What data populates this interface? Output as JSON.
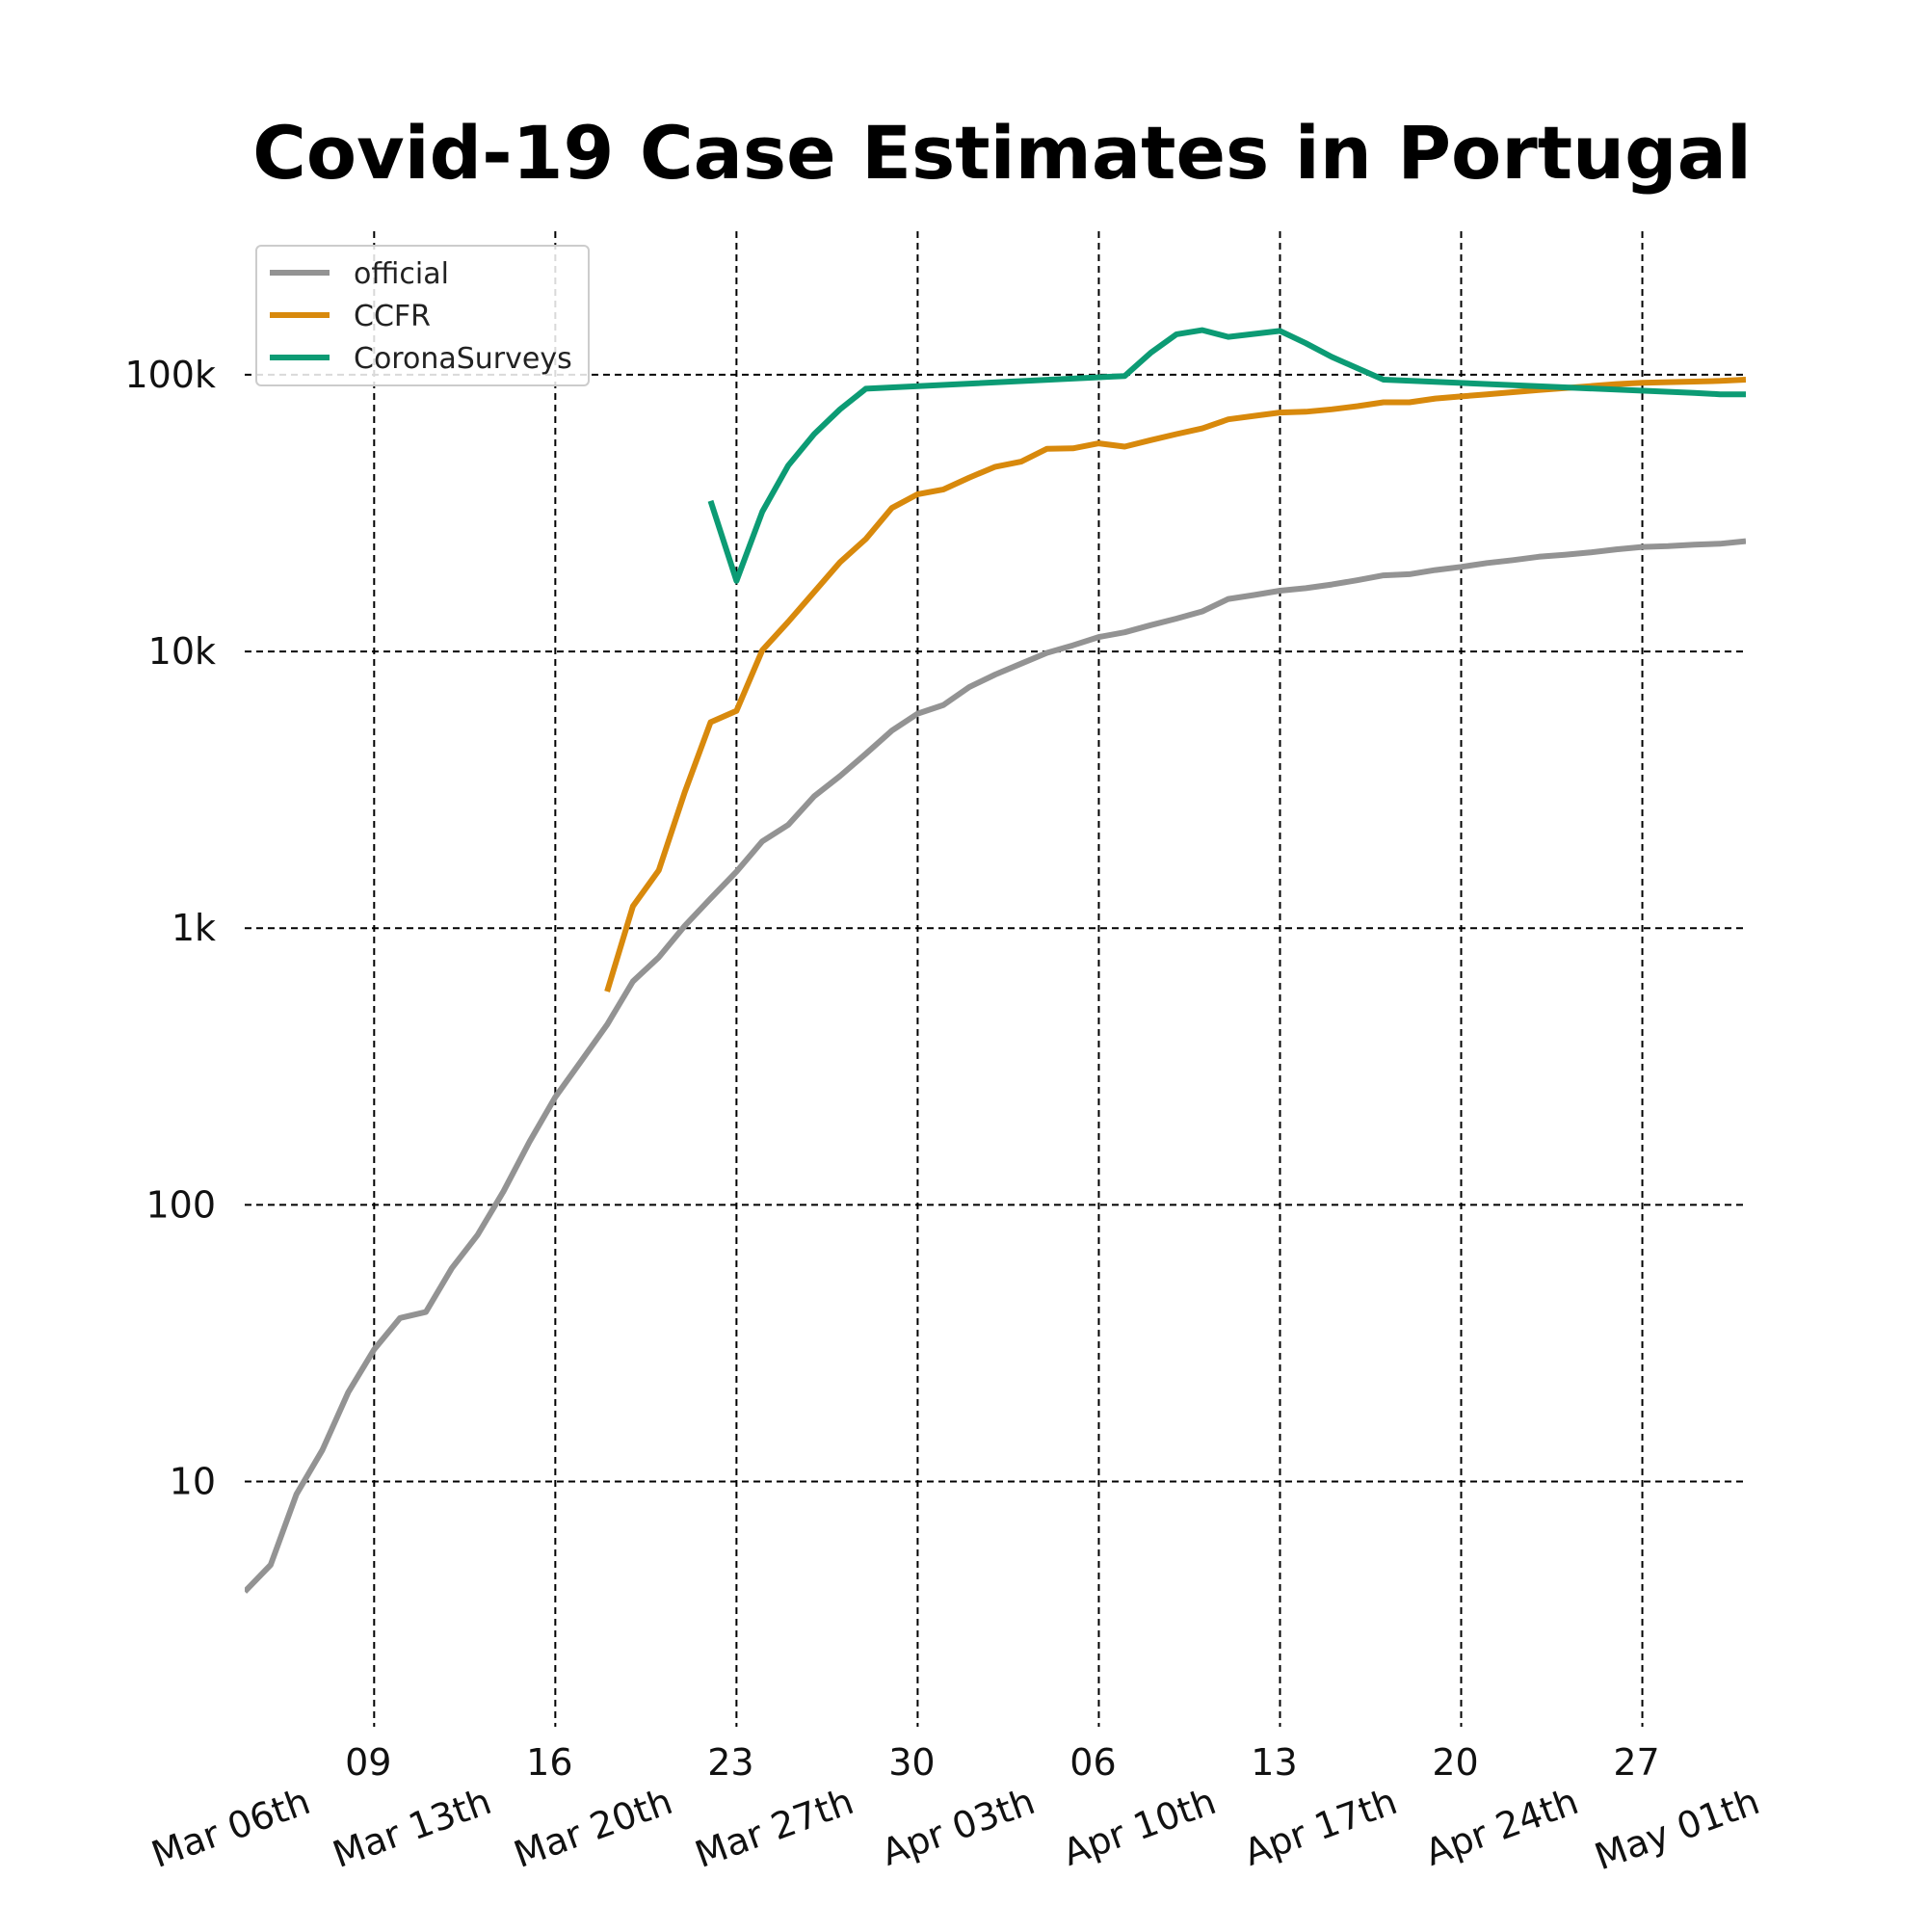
{
  "chart_data": {
    "type": "line",
    "title": "Covid-19 Case Estimates in Portugal",
    "xlabel": "",
    "ylabel": "",
    "yscale": "log",
    "ylim": [
      1.3,
      330000
    ],
    "xlim": [
      "2020-03-04",
      "2020-05-01"
    ],
    "grid": true,
    "legend_position": "top-left",
    "y_ticks": [
      {
        "value": 10,
        "label": "10"
      },
      {
        "value": 100,
        "label": "100"
      },
      {
        "value": 1000,
        "label": "1k"
      },
      {
        "value": 10000,
        "label": "10k"
      },
      {
        "value": 100000,
        "label": "100k"
      }
    ],
    "x_major_ticks": [
      {
        "date": "2020-03-06",
        "label": "Mar 06th"
      },
      {
        "date": "2020-03-13",
        "label": "Mar 13th"
      },
      {
        "date": "2020-03-20",
        "label": "Mar 20th"
      },
      {
        "date": "2020-03-27",
        "label": "Mar 27th"
      },
      {
        "date": "2020-04-03",
        "label": "Apr 03th"
      },
      {
        "date": "2020-04-10",
        "label": "Apr 10th"
      },
      {
        "date": "2020-04-17",
        "label": "Apr 17th"
      },
      {
        "date": "2020-04-24",
        "label": "Apr 24th"
      },
      {
        "date": "2020-05-01",
        "label": "May 01th"
      }
    ],
    "x_minor_ticks": [
      {
        "date": "2020-03-09",
        "label": "09"
      },
      {
        "date": "2020-03-16",
        "label": "16"
      },
      {
        "date": "2020-03-23",
        "label": "23"
      },
      {
        "date": "2020-03-30",
        "label": "30"
      },
      {
        "date": "2020-04-06",
        "label": "06"
      },
      {
        "date": "2020-04-13",
        "label": "13"
      },
      {
        "date": "2020-04-20",
        "label": "20"
      },
      {
        "date": "2020-04-27",
        "label": "27"
      }
    ],
    "series": [
      {
        "name": "official",
        "color": "#939393",
        "points": [
          [
            "2020-03-04",
            4
          ],
          [
            "2020-03-05",
            5
          ],
          [
            "2020-03-06",
            9
          ],
          [
            "2020-03-07",
            13
          ],
          [
            "2020-03-08",
            21
          ],
          [
            "2020-03-09",
            30
          ],
          [
            "2020-03-10",
            39
          ],
          [
            "2020-03-11",
            41
          ],
          [
            "2020-03-12",
            59
          ],
          [
            "2020-03-13",
            78
          ],
          [
            "2020-03-14",
            112
          ],
          [
            "2020-03-15",
            169
          ],
          [
            "2020-03-16",
            245
          ],
          [
            "2020-03-17",
            331
          ],
          [
            "2020-03-18",
            448
          ],
          [
            "2020-03-19",
            642
          ],
          [
            "2020-03-20",
            785
          ],
          [
            "2020-03-21",
            1020
          ],
          [
            "2020-03-22",
            1280
          ],
          [
            "2020-03-23",
            1600
          ],
          [
            "2020-03-24",
            2060
          ],
          [
            "2020-03-25",
            2362
          ],
          [
            "2020-03-26",
            2995
          ],
          [
            "2020-03-27",
            3544
          ],
          [
            "2020-03-28",
            4268
          ],
          [
            "2020-03-29",
            5170
          ],
          [
            "2020-03-30",
            5962
          ],
          [
            "2020-03-31",
            6408
          ],
          [
            "2020-04-01",
            7443
          ],
          [
            "2020-04-02",
            8251
          ],
          [
            "2020-04-03",
            9034
          ],
          [
            "2020-04-04",
            9886
          ],
          [
            "2020-04-05",
            10524
          ],
          [
            "2020-04-06",
            11278
          ],
          [
            "2020-04-07",
            11730
          ],
          [
            "2020-04-08",
            12442
          ],
          [
            "2020-04-09",
            13141
          ],
          [
            "2020-04-10",
            13956
          ],
          [
            "2020-04-11",
            15472
          ],
          [
            "2020-04-12",
            15987
          ],
          [
            "2020-04-13",
            16585
          ],
          [
            "2020-04-14",
            16934
          ],
          [
            "2020-04-15",
            17448
          ],
          [
            "2020-04-16",
            18091
          ],
          [
            "2020-04-17",
            18841
          ],
          [
            "2020-04-18",
            19022
          ],
          [
            "2020-04-19",
            19685
          ],
          [
            "2020-04-20",
            20206
          ],
          [
            "2020-04-21",
            20863
          ],
          [
            "2020-04-22",
            21379
          ],
          [
            "2020-04-23",
            21982
          ],
          [
            "2020-04-24",
            22353
          ],
          [
            "2020-04-25",
            22797
          ],
          [
            "2020-04-26",
            23392
          ],
          [
            "2020-04-27",
            23864
          ],
          [
            "2020-04-28",
            24027
          ],
          [
            "2020-04-29",
            24322
          ],
          [
            "2020-04-30",
            24505
          ],
          [
            "2020-05-01",
            25045
          ]
        ]
      },
      {
        "name": "CCFR",
        "color": "#d8890c",
        "points": [
          [
            "2020-03-18",
            590
          ],
          [
            "2020-03-19",
            1200
          ],
          [
            "2020-03-20",
            1620
          ],
          [
            "2020-03-21",
            3100
          ],
          [
            "2020-03-22",
            5550
          ],
          [
            "2020-03-23",
            6100
          ],
          [
            "2020-03-24",
            10100
          ],
          [
            "2020-03-25",
            12800
          ],
          [
            "2020-03-26",
            16400
          ],
          [
            "2020-03-27",
            21000
          ],
          [
            "2020-03-28",
            25500
          ],
          [
            "2020-03-29",
            33000
          ],
          [
            "2020-03-30",
            37000
          ],
          [
            "2020-03-31",
            38500
          ],
          [
            "2020-04-01",
            42500
          ],
          [
            "2020-04-02",
            46500
          ],
          [
            "2020-04-03",
            48500
          ],
          [
            "2020-04-04",
            54000
          ],
          [
            "2020-04-05",
            54200
          ],
          [
            "2020-04-06",
            56500
          ],
          [
            "2020-04-07",
            55000
          ],
          [
            "2020-04-08",
            58000
          ],
          [
            "2020-04-09",
            61000
          ],
          [
            "2020-04-10",
            64000
          ],
          [
            "2020-04-11",
            69000
          ],
          [
            "2020-04-12",
            71000
          ],
          [
            "2020-04-13",
            73000
          ],
          [
            "2020-04-14",
            73500
          ],
          [
            "2020-04-15",
            75000
          ],
          [
            "2020-04-16",
            77000
          ],
          [
            "2020-04-17",
            79500
          ],
          [
            "2020-04-18",
            79500
          ],
          [
            "2020-04-19",
            82000
          ],
          [
            "2020-04-20",
            83500
          ],
          [
            "2020-04-21",
            85000
          ],
          [
            "2020-04-22",
            86500
          ],
          [
            "2020-04-23",
            88000
          ],
          [
            "2020-04-24",
            89500
          ],
          [
            "2020-04-25",
            91000
          ],
          [
            "2020-04-26",
            92500
          ],
          [
            "2020-04-27",
            93500
          ],
          [
            "2020-04-28",
            94000
          ],
          [
            "2020-04-29",
            94500
          ],
          [
            "2020-04-30",
            95000
          ],
          [
            "2020-05-01",
            96000
          ]
        ]
      },
      {
        "name": "CoronaSurveys",
        "color": "#0c9b74",
        "points": [
          [
            "2020-03-22",
            35000
          ],
          [
            "2020-03-23",
            18000
          ],
          [
            "2020-03-24",
            32000
          ],
          [
            "2020-03-25",
            47000
          ],
          [
            "2020-03-26",
            61000
          ],
          [
            "2020-03-27",
            75000
          ],
          [
            "2020-03-28",
            89000
          ],
          [
            "2020-04-07",
            99000
          ],
          [
            "2020-04-08",
            120000
          ],
          [
            "2020-04-09",
            140000
          ],
          [
            "2020-04-10",
            145000
          ],
          [
            "2020-04-11",
            137000
          ],
          [
            "2020-04-13",
            144000
          ],
          [
            "2020-04-14",
            130000
          ],
          [
            "2020-04-15",
            116000
          ],
          [
            "2020-04-17",
            96000
          ],
          [
            "2020-04-24",
            90000
          ],
          [
            "2020-04-29",
            86000
          ],
          [
            "2020-04-30",
            85000
          ],
          [
            "2020-05-01",
            85000
          ]
        ]
      }
    ]
  }
}
